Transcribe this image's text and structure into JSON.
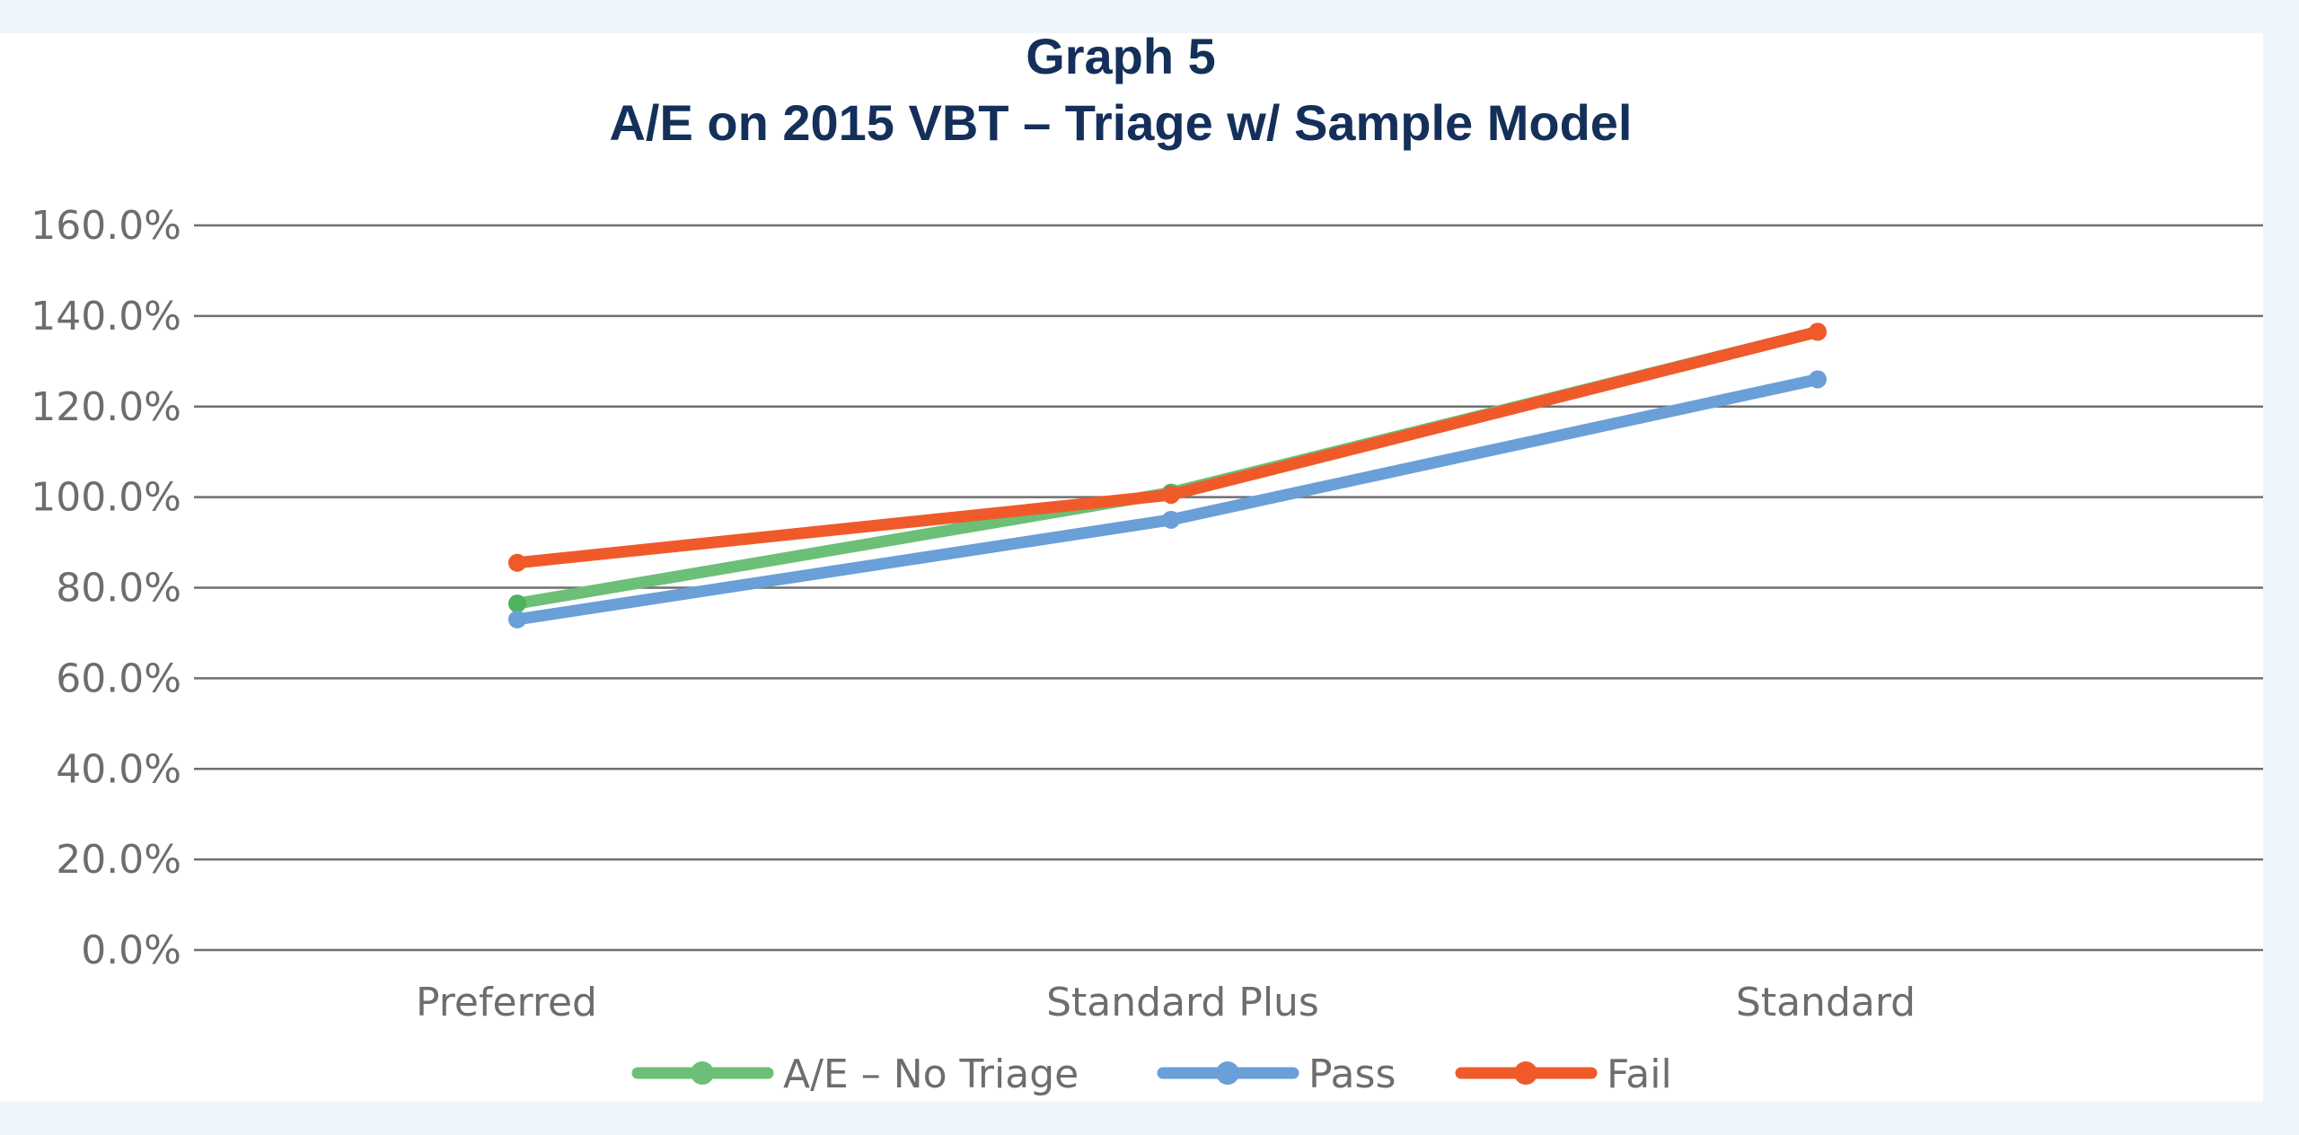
{
  "chart_data": {
    "type": "line",
    "title": "Graph 5",
    "subtitle": "A/E on 2015 VBT – Triage w/ Sample Model",
    "categories": [
      "Preferred",
      "Standard Plus",
      "Standard"
    ],
    "ylim": [
      0,
      160
    ],
    "y_ticks": [
      0,
      20,
      40,
      60,
      80,
      100,
      120,
      140,
      160
    ],
    "y_tick_labels": [
      "0.0%",
      "20.0%",
      "40.0%",
      "60.0%",
      "80.0%",
      "100.0%",
      "120.0%",
      "140.0%",
      "160.0%"
    ],
    "grid": true,
    "legend_position": "bottom",
    "series": [
      {
        "name": "A/E – No Triage",
        "values": [
          76.5,
          101,
          136.5
        ],
        "color": "#6cbf77",
        "marker_color": "#4db35c"
      },
      {
        "name": "Pass",
        "values": [
          73,
          95,
          126
        ],
        "color": "#6a9fd8",
        "marker_color": "#6a9fd8"
      },
      {
        "name": "Fail",
        "values": [
          85.5,
          100.5,
          136.5
        ],
        "color": "#f05a2b",
        "marker_color": "#f05a2b"
      }
    ]
  }
}
